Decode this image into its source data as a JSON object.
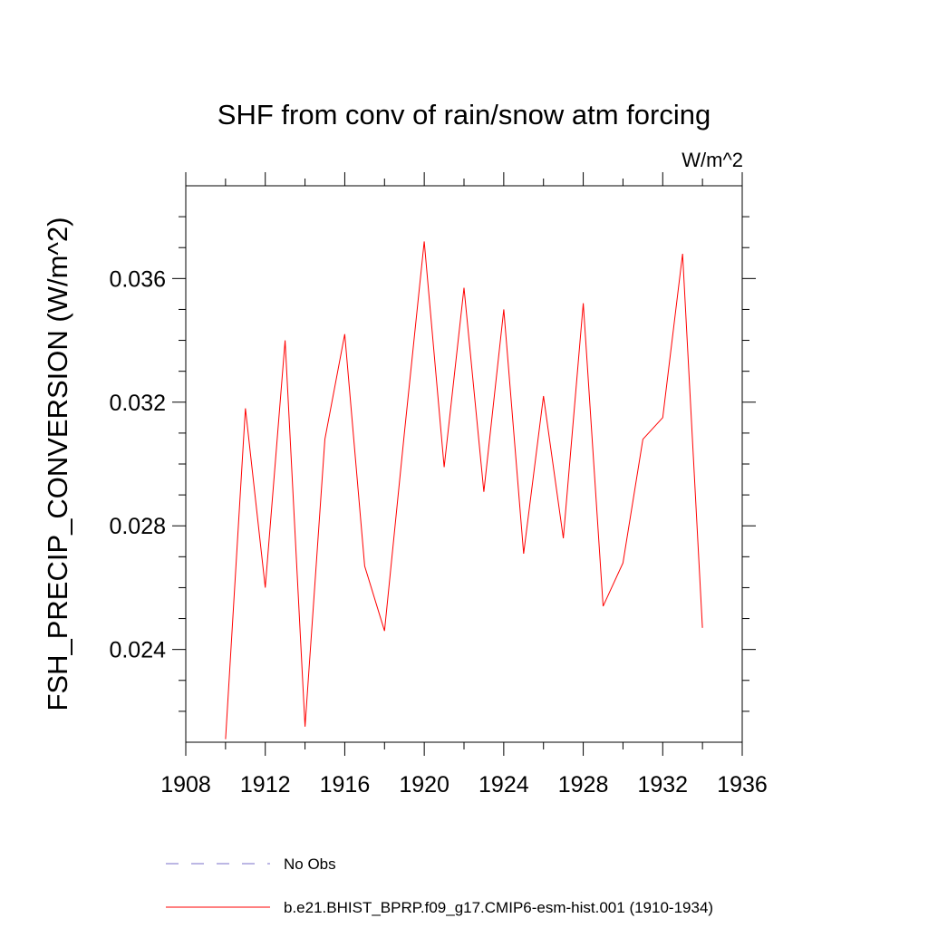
{
  "chart_data": {
    "type": "line",
    "title": "SHF from conv of rain/snow atm forcing",
    "units_label": "W/m^2",
    "xlabel": "",
    "ylabel": "FSH_PRECIP_CONVERSION  (W/m^2)",
    "xlim": [
      1908,
      1936
    ],
    "ylim": [
      0.021,
      0.039
    ],
    "x_ticks": [
      1908,
      1912,
      1916,
      1920,
      1924,
      1928,
      1932,
      1936
    ],
    "x_tick_labels": [
      "1908",
      "1912",
      "1916",
      "1920",
      "1924",
      "1928",
      "1932",
      "1936"
    ],
    "y_ticks": [
      0.024,
      0.028,
      0.032,
      0.036
    ],
    "y_tick_labels": [
      "0.024",
      "0.028",
      "0.032",
      "0.036"
    ],
    "grid": false,
    "legend_position": "bottom",
    "series": [
      {
        "name": "b.e21.BHIST_BPRP.f09_g17.CMIP6-esm-hist.001 (1910-1934)",
        "color": "#ff0000",
        "style": "solid",
        "x": [
          1910,
          1911,
          1912,
          1913,
          1914,
          1915,
          1916,
          1917,
          1918,
          1919,
          1920,
          1921,
          1922,
          1923,
          1924,
          1925,
          1926,
          1927,
          1928,
          1929,
          1930,
          1931,
          1932,
          1933,
          1934
        ],
        "y": [
          0.0211,
          0.0318,
          0.026,
          0.034,
          0.0215,
          0.0308,
          0.0342,
          0.0267,
          0.0246,
          0.031,
          0.0372,
          0.0299,
          0.0357,
          0.0291,
          0.035,
          0.0271,
          0.0322,
          0.0276,
          0.0352,
          0.0254,
          0.0268,
          0.0308,
          0.0315,
          0.0368,
          0.0247
        ]
      }
    ],
    "legend": [
      {
        "label": "No Obs",
        "color": "#7a6fc9",
        "style": "dashed"
      },
      {
        "label": "b.e21.BHIST_BPRP.f09_g17.CMIP6-esm-hist.001 (1910-1934)",
        "color": "#ff0000",
        "style": "solid"
      }
    ]
  }
}
